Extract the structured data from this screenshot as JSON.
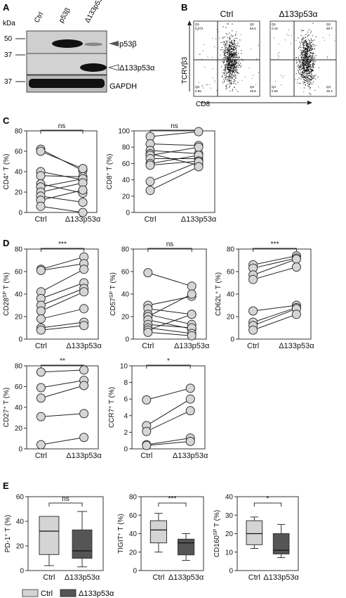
{
  "panels": {
    "A": {
      "label": "A",
      "kda_label": "kDa",
      "lanes": [
        "Ctrl",
        "p53β",
        "Δ133p53"
      ],
      "markers": [
        "50",
        "37",
        "37"
      ],
      "bands": [
        "p53β",
        "Δ133p53α",
        "GAPDH"
      ]
    },
    "B": {
      "label": "B",
      "titles": [
        "Ctrl",
        "Δ133p53α"
      ],
      "ylabel": "TCRVβ3",
      "xlabel": "CD8",
      "plots": [
        {
          "q1_label": "Q1",
          "q1": "0.072",
          "q2_label": "Q2",
          "q2": "55.5",
          "q3_label": "Q3",
          "q3": "43.8",
          "q4_label": "Q4",
          "q4": "0.65"
        },
        {
          "q1_label": "Q1",
          "q1": "0.15",
          "q2_label": "Q2",
          "q2": "69.7",
          "q3_label": "Q3",
          "q3": "29.4",
          "q4_label": "Q4",
          "q4": "0.69"
        }
      ]
    },
    "C": {
      "label": "C"
    },
    "D": {
      "label": "D"
    },
    "E": {
      "label": "E",
      "legend": [
        {
          "name": "Ctrl",
          "color": "#d4d4d4"
        },
        {
          "name": "Δ133p53α",
          "color": "#555555"
        }
      ]
    }
  },
  "chart_data": [
    {
      "id": "C-CD4",
      "type": "paired-line",
      "ylabel_main": "CD4",
      "ylabel_sup": "+",
      "ylabel_rest": " T (%)",
      "ylim": [
        0,
        80
      ],
      "yticks": [
        0,
        20,
        40,
        60,
        80
      ],
      "categories": [
        "Ctrl",
        "Δ133p53α"
      ],
      "significance": "ns",
      "pairs": [
        [
          62,
          41
        ],
        [
          60,
          43
        ],
        [
          40,
          32
        ],
        [
          36,
          35
        ],
        [
          28,
          19
        ],
        [
          25,
          33
        ],
        [
          20,
          29
        ],
        [
          16,
          10
        ],
        [
          12,
          22
        ],
        [
          6,
          0
        ]
      ]
    },
    {
      "id": "C-CD8",
      "type": "paired-line",
      "ylabel_main": "CD8",
      "ylabel_sup": "+",
      "ylabel_rest": " T (%)",
      "ylim": [
        0,
        100
      ],
      "yticks": [
        0,
        20,
        40,
        60,
        80,
        100
      ],
      "categories": [
        "Ctrl",
        "Δ133p53α"
      ],
      "significance": "ns",
      "pairs": [
        [
          93,
          99
        ],
        [
          84,
          82
        ],
        [
          76,
          72
        ],
        [
          72,
          58
        ],
        [
          70,
          80
        ],
        [
          66,
          66
        ],
        [
          60,
          70
        ],
        [
          58,
          63
        ],
        [
          38,
          62
        ],
        [
          27,
          56
        ]
      ]
    },
    {
      "id": "D-CD28",
      "type": "paired-line",
      "ylabel_main": "CD28",
      "ylabel_sup": "SP",
      "ylabel_rest": " T (%)",
      "ylim": [
        0,
        80
      ],
      "yticks": [
        0,
        20,
        40,
        60,
        80
      ],
      "categories": [
        "Ctrl",
        "Δ133p53α"
      ],
      "significance": "***",
      "pairs": [
        [
          62,
          73
        ],
        [
          61,
          67
        ],
        [
          42,
          62
        ],
        [
          36,
          50
        ],
        [
          30,
          45
        ],
        [
          25,
          42
        ],
        [
          18,
          27
        ],
        [
          10,
          15
        ],
        [
          8,
          12
        ]
      ]
    },
    {
      "id": "D-CD57",
      "type": "paired-line",
      "ylabel_main": "CD57",
      "ylabel_sup": "SP",
      "ylabel_rest": " T (%)",
      "ylim": [
        0,
        80
      ],
      "yticks": [
        0,
        20,
        40,
        60,
        80
      ],
      "categories": [
        "Ctrl",
        "Δ133p53α"
      ],
      "significance": "ns",
      "pairs": [
        [
          59,
          47
        ],
        [
          30,
          38
        ],
        [
          27,
          22
        ],
        [
          22,
          13
        ],
        [
          20,
          40
        ],
        [
          17,
          9
        ],
        [
          13,
          10
        ],
        [
          10,
          5
        ],
        [
          8,
          22
        ],
        [
          6,
          3
        ]
      ]
    },
    {
      "id": "D-CD62L",
      "type": "paired-line",
      "ylabel_main": "CD62L",
      "ylabel_sup": "+",
      "ylabel_rest": " T (%)",
      "ylim": [
        0,
        80
      ],
      "yticks": [
        0,
        20,
        40,
        60,
        80
      ],
      "categories": [
        "Ctrl",
        "Δ133p53α"
      ],
      "significance": "***",
      "pairs": [
        [
          66,
          74
        ],
        [
          63,
          72
        ],
        [
          57,
          71
        ],
        [
          53,
          64
        ],
        [
          25,
          30
        ],
        [
          15,
          28
        ],
        [
          12,
          27
        ],
        [
          8,
          22
        ]
      ]
    },
    {
      "id": "D-CD27",
      "type": "paired-line",
      "ylabel_main": "CD27",
      "ylabel_sup": "+",
      "ylabel_rest": " T (%)",
      "ylim": [
        0,
        80
      ],
      "yticks": [
        0,
        20,
        40,
        60,
        80
      ],
      "categories": [
        "Ctrl",
        "Δ133p53α"
      ],
      "significance": "**",
      "pairs": [
        [
          74,
          76
        ],
        [
          59,
          66
        ],
        [
          49,
          61
        ],
        [
          31,
          34
        ],
        [
          4,
          11
        ]
      ]
    },
    {
      "id": "D-CCR7",
      "type": "paired-line",
      "ylabel_main": "CCR7",
      "ylabel_sup": "+",
      "ylabel_rest": " T (%)",
      "ylim": [
        0,
        10
      ],
      "yticks": [
        0,
        2,
        4,
        6,
        8,
        10
      ],
      "categories": [
        "Ctrl",
        "Δ133p53α"
      ],
      "significance": "*",
      "pairs": [
        [
          5.9,
          7.3
        ],
        [
          2.8,
          6.0
        ],
        [
          2.1,
          4.6
        ],
        [
          0.5,
          1.3
        ],
        [
          0.4,
          0.9
        ]
      ]
    },
    {
      "id": "E-PD1",
      "type": "box",
      "ylabel_main": "PD-1",
      "ylabel_sup": "+",
      "ylabel_rest": " T (%)",
      "ylim": [
        0,
        60
      ],
      "yticks": [
        0,
        20,
        40,
        60
      ],
      "categories": [
        "Ctrl",
        "Δ133p53α"
      ],
      "significance": "ns",
      "boxes": [
        {
          "min": 4,
          "q1": 13,
          "median": 32,
          "q3": 44,
          "max": 44
        },
        {
          "min": 3,
          "q1": 10,
          "median": 16,
          "q3": 33,
          "max": 48
        }
      ]
    },
    {
      "id": "E-TIGIT",
      "type": "box",
      "ylabel_main": "TIGIT",
      "ylabel_sup": "+",
      "ylabel_rest": " T (%)",
      "ylim": [
        0,
        80
      ],
      "yticks": [
        0,
        20,
        40,
        60,
        80
      ],
      "categories": [
        "Ctrl",
        "Δ133p53α"
      ],
      "significance": "***",
      "boxes": [
        {
          "min": 20,
          "q1": 30,
          "median": 44,
          "q3": 54,
          "max": 62
        },
        {
          "min": 11,
          "q1": 17,
          "median": 30,
          "q3": 34,
          "max": 40
        }
      ]
    },
    {
      "id": "E-CD160",
      "type": "box",
      "ylabel_main": "CD160",
      "ylabel_sup": "SP",
      "ylabel_rest": " T (%)",
      "ylim": [
        0,
        40
      ],
      "yticks": [
        0,
        10,
        20,
        30,
        40
      ],
      "categories": [
        "Ctrl",
        "Δ133p53α"
      ],
      "significance": "*",
      "boxes": [
        {
          "min": 12,
          "q1": 14,
          "median": 20,
          "q3": 27,
          "max": 29
        },
        {
          "min": 7,
          "q1": 9,
          "median": 11,
          "q3": 20,
          "max": 25
        }
      ]
    }
  ]
}
